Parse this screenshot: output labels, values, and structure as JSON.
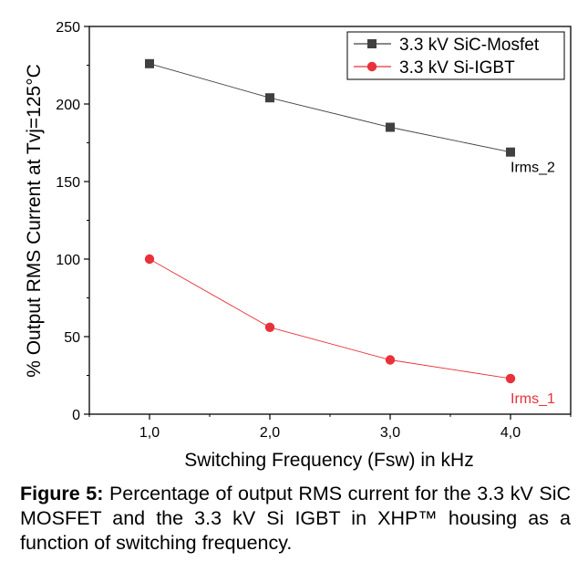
{
  "chart_data": {
    "type": "line",
    "categories": [
      "1,0",
      "2,0",
      "3,0",
      "4,0"
    ],
    "x": [
      1.0,
      2.0,
      3.0,
      4.0
    ],
    "xlabel": "Switching Frequency (Fsw) in kHz",
    "ylabel": "% Output RMS Current at Tvj=125°C",
    "ylim": [
      0,
      250
    ],
    "xlim": [
      0.5,
      4.5
    ],
    "yticks": [
      0,
      50,
      100,
      150,
      200,
      250
    ],
    "grid": false,
    "legend_position": "top-right",
    "series": [
      {
        "name": "3.3 kV SiC-Mosfet",
        "values": [
          226,
          204,
          185,
          169
        ],
        "color": "#404040",
        "marker": "square",
        "annotation": "Irms_2",
        "annotation_color": "#000000"
      },
      {
        "name": "3.3 kV Si-IGBT",
        "values": [
          100,
          56,
          35,
          23
        ],
        "color": "#e8313a",
        "marker": "circle",
        "annotation": "Irms_1",
        "annotation_color": "#e8313a"
      }
    ]
  },
  "caption": {
    "label": "Figure 5:",
    "text": " Percentage of output RMS current for the 3.3 kV SiC MOSFET and the 3.3 kV Si IGBT in XHP™ housing as a function of switching frequency."
  }
}
